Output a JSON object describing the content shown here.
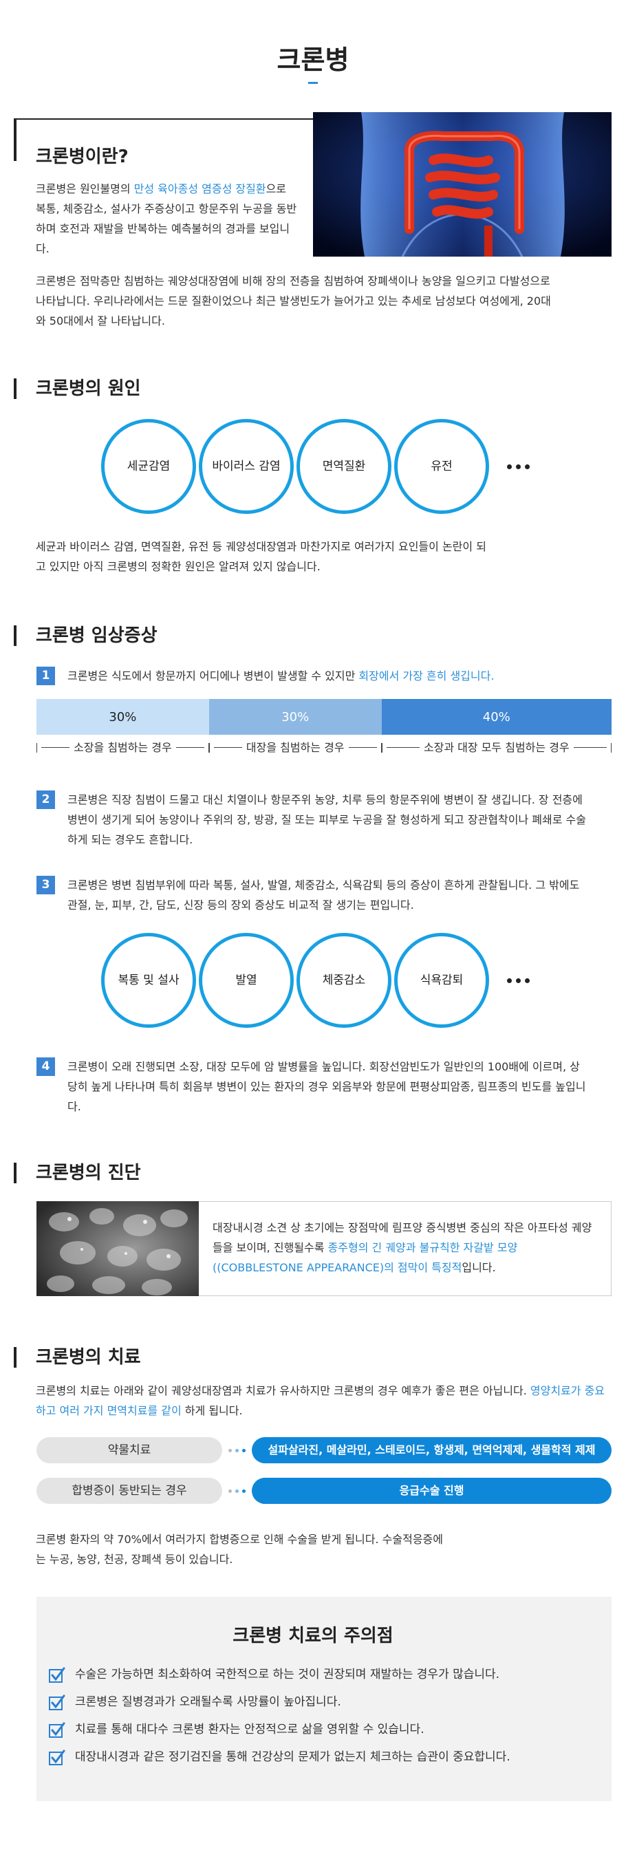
{
  "title": "크론병",
  "intro": {
    "heading": "크론병이란?",
    "paragraph1": [
      "크론병은 원인불명의 ",
      "만성 육아종성 염증성 장질환",
      "으로 복통, 체중감소, 설사가 주증상이고 항문주위 누공을 동반하며 호전과 재발을 반복하는 예측불허의 경과를 보입니다."
    ],
    "paragraph2": "크론병은 점막층만 침범하는 궤양성대장염에 비해 장의 전층을 침범하여 장폐색이나 농양을 일으키고 다발성으로 나타납니다. 우리나라에서는 드문 질환이었으나 최근 발생빈도가 늘어가고 있는 추세로 남성보다 여성에게, 20대와 50대에서 잘 나타납니다."
  },
  "causes": {
    "heading": "크론병의 원인",
    "items": [
      "세균감염",
      "바이러스 감염",
      "면역질환",
      "유전"
    ],
    "text": "세균과 바이러스 감염, 면역질환, 유전 등 궤양성대장염과 마찬가지로 여러가지 요인들이 논란이 되고 있지만 아직 크론병의 정확한 원인은 알려져 있지 않습니다."
  },
  "symptoms": {
    "heading": "크론병 임상증상",
    "items": [
      {
        "number": "1",
        "parts": [
          "크론병은 식도에서 항문까지 어디에나 병변이 발생할 수 있지만 ",
          "회장에서 가장 흔히 생깁니다."
        ]
      },
      {
        "number": "2",
        "parts": [
          "크론병은 직장 침범이 드물고 대신 치열이나 항문주위 농양, 치루 등의 항문주위에 병변이 잘 생깁니다. 장 전층에 병변이 생기게 되어 농양이나 주위의 장, 방광, 질 또는 피부로 누공을 잘 형성하게 되고 장관협착이나 폐쇄로 수술하게 되는 경우도 흔합니다."
        ]
      },
      {
        "number": "3",
        "parts": [
          "크론병은 병변 침범부위에 따라 복통, 설사, 발열, 체중감소, 식욕감퇴 등의 증상이 흔하게 관찰됩니다. 그 밖에도 관절, 눈, 피부, 간, 담도, 신장 등의 장외 증상도 비교적 잘 생기는 편입니다."
        ]
      },
      {
        "number": "4",
        "parts": [
          "크론병이 오래 진행되면 소장, 대장 모두에 암 발병률을 높입니다. 회장선암빈도가 일반인의 100배에 이르며, 상당히 높게 나타나며 특히 회음부 병변이 있는 환자의 경우 외음부와 항문에 편평상피암종, 림프종의 빈도를 높입니다."
        ]
      }
    ],
    "distribution": [
      {
        "value": 30,
        "label": "30%",
        "caption": "소장을 침범하는 경우",
        "color": "#c6e0f7"
      },
      {
        "value": 30,
        "label": "30%",
        "caption": "대장을 침범하는 경우",
        "color": "#8db8e4"
      },
      {
        "value": 40,
        "label": "40%",
        "caption": "소장과 대장 모두 침범하는 경우",
        "color": "#3f86d4"
      }
    ],
    "signs": [
      "복통 및 설사",
      "발열",
      "체중감소",
      "식욕감퇴"
    ]
  },
  "diagnosis": {
    "heading": "크론병의 진단",
    "parts": [
      "대장내시경 소견 상 초기에는 장점막에 림프양 증식병변 중심의 작은 아프타성 궤양들을 보이며, 진행될수록 ",
      "종주형의 긴 궤양과 불규칙한 자갈밭 모양 ((COBBLESTONE APPEARANCE)의 점막이 특징적",
      "입니다."
    ]
  },
  "treatment": {
    "heading": "크론병의 치료",
    "parts": [
      "크론병의 치료는 아래와 같이 궤양성대장염과 치료가 유사하지만 크론병의 경우 예후가 좋은 편은 아닙니다. ",
      "영양치료가 중요하고 여러 가지 면역치료를 같이",
      " 하게 됩니다."
    ],
    "rows": [
      {
        "label": "약물치료",
        "detail": "설파살라진, 메살라민, 스테로이드, 항생제, 면역억제제, 생물학적 제제"
      },
      {
        "label": "합병증이 동반되는 경우",
        "detail": "응급수술 진행"
      }
    ],
    "note": "크론병 환자의 약 70%에서 여러가지 합병증으로 인해 수술을 받게 됩니다. 수술적응증에는 누공, 농양, 천공, 장폐색 등이 있습니다."
  },
  "cautions": {
    "heading": "크론병 치료의 주의점",
    "items": [
      "수술은 가능하면 최소화하여 국한적으로 하는 것이 권장되며 재발하는 경우가 많습니다.",
      "크론병은 질병경과가 오래될수록 사망률이 높아집니다.",
      "치료를 통해 대다수 크론병 환자는 안정적으로 삶을 영위할 수 있습니다.",
      "대장내시경과 같은 정기검진을 통해 건강상의 문제가 없는지 체크하는 습관이 중요합니다."
    ]
  }
}
